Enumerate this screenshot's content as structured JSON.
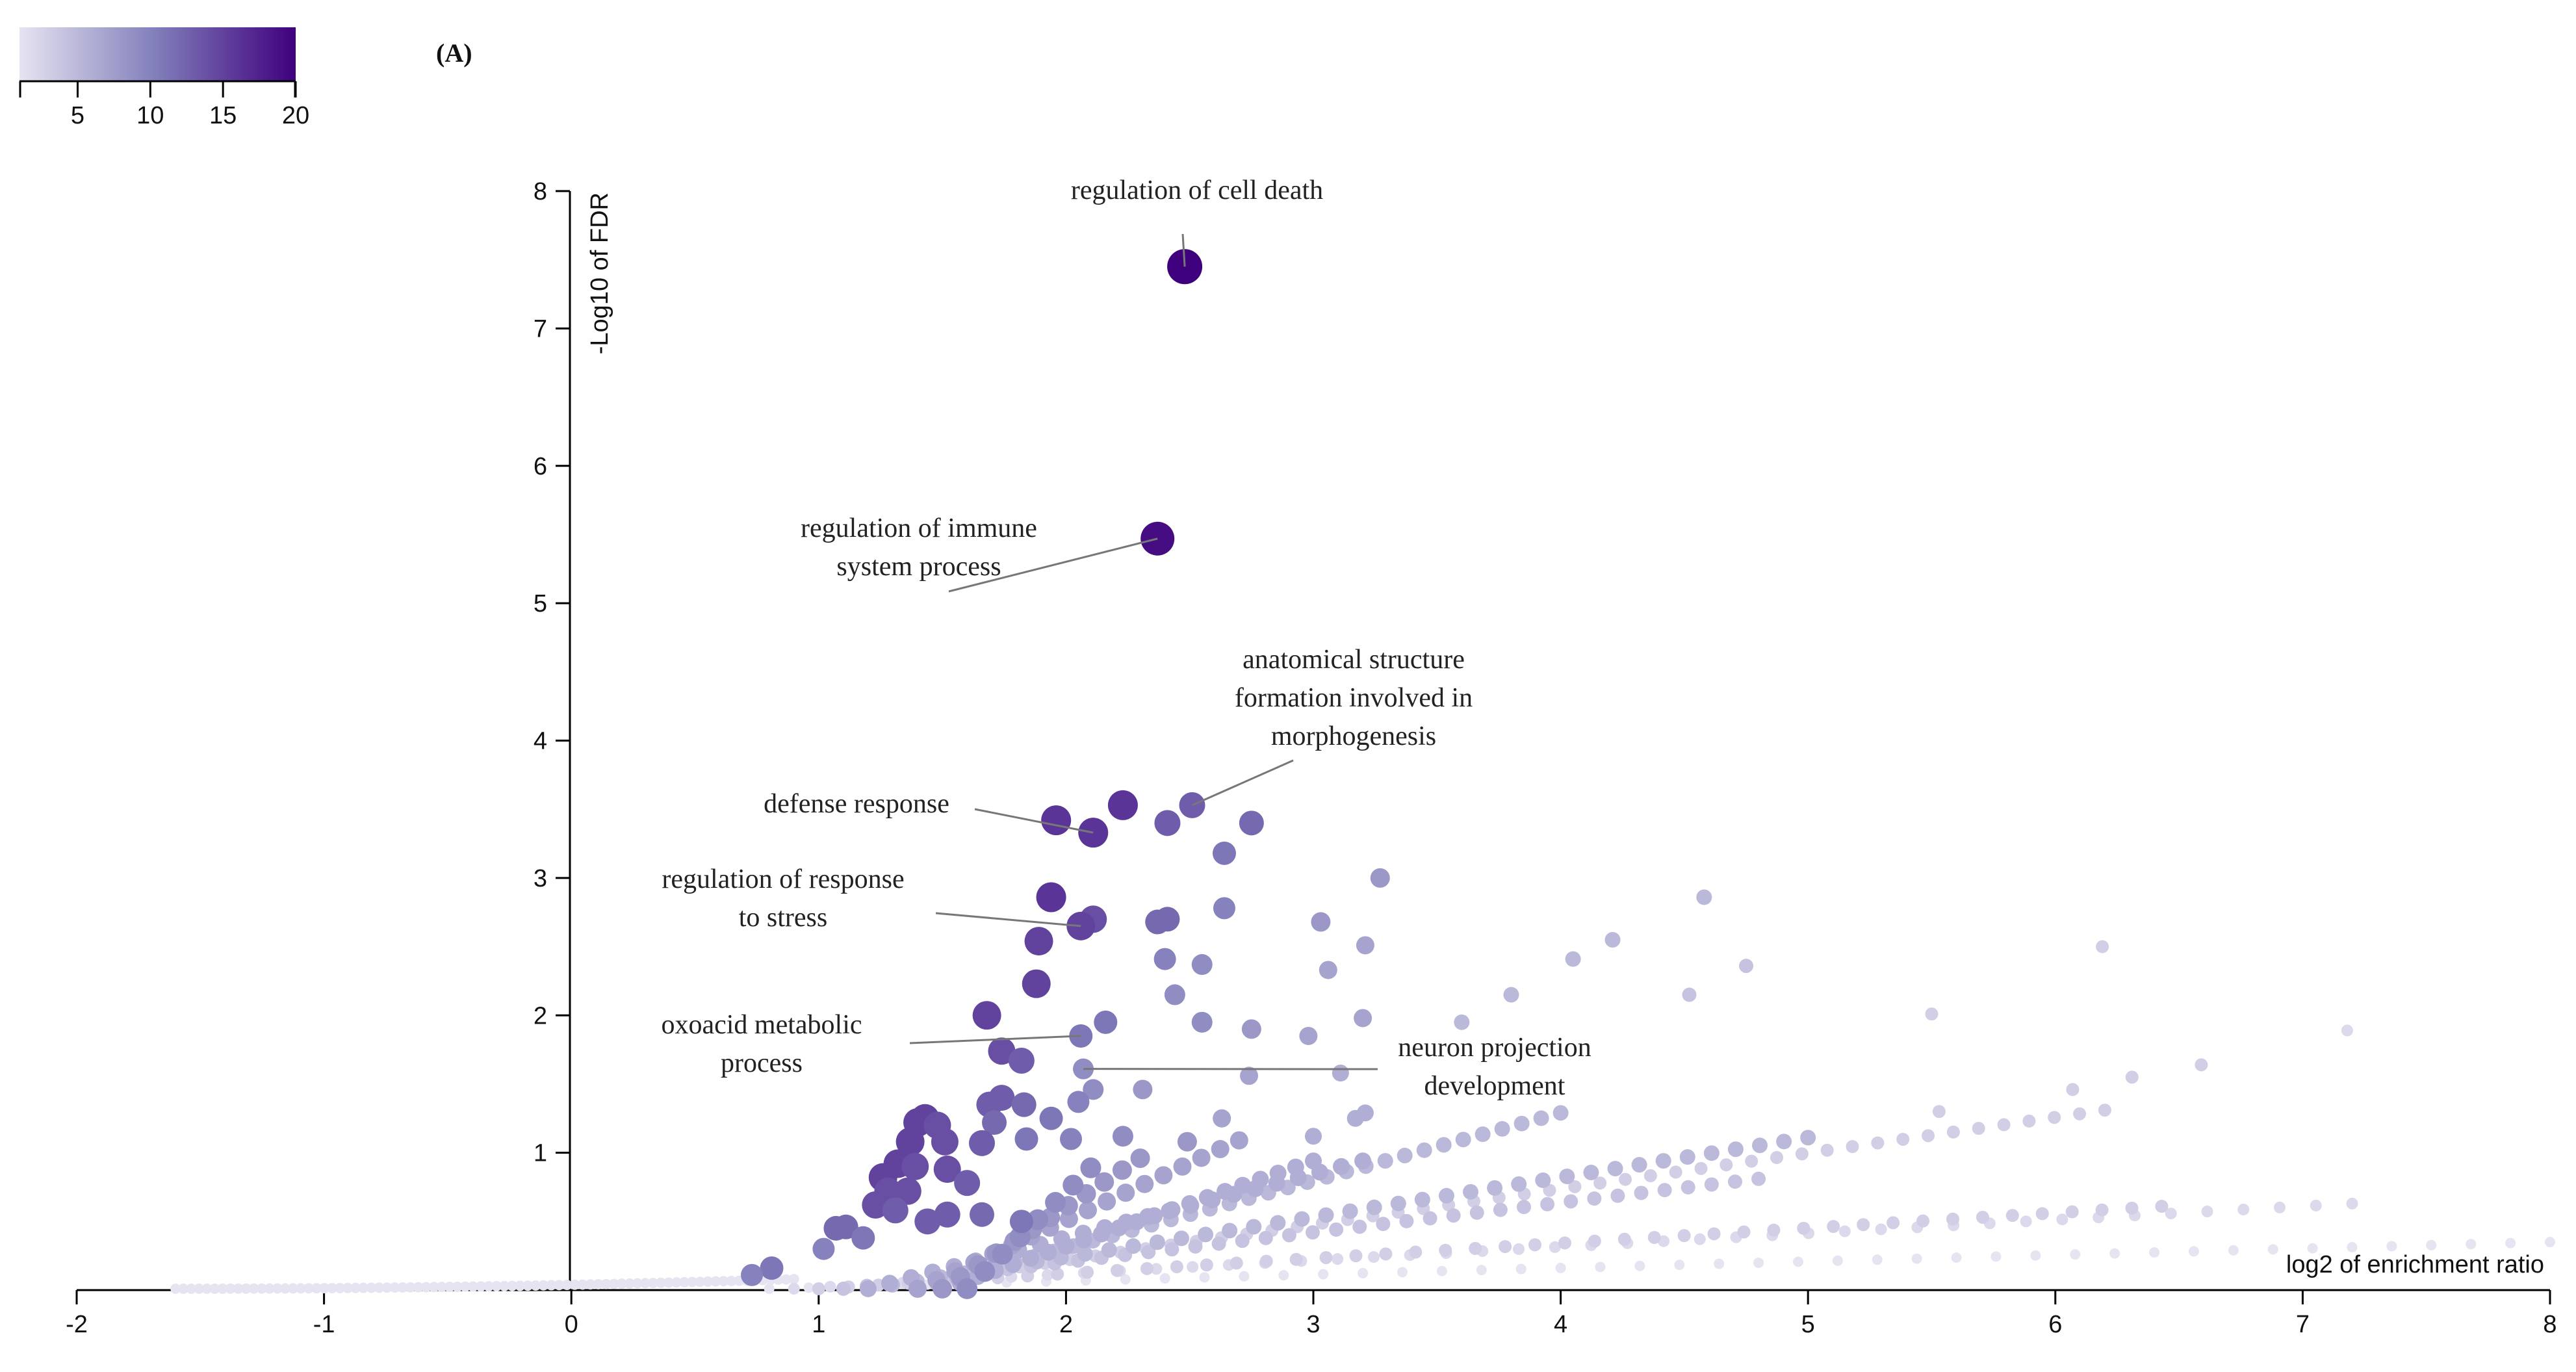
{
  "panel_label": "(A)",
  "colorbar": {
    "ticks": [
      "5",
      "10",
      "15",
      "20"
    ],
    "range": [
      1,
      20
    ],
    "color_low": "#e6e4f1",
    "color_high": "#3f007d"
  },
  "chart_data": {
    "type": "scatter",
    "xlabel": "log2 of enrichment ratio",
    "ylabel": "-Log10 of FDR",
    "xlim": [
      -2,
      8
    ],
    "ylim": [
      0,
      8
    ],
    "x_ticks": [
      "-2",
      "-1",
      "0",
      "1",
      "2",
      "3",
      "4",
      "5",
      "6",
      "7",
      "8"
    ],
    "y_ticks": [
      "1",
      "2",
      "3",
      "4",
      "5",
      "6",
      "7",
      "8"
    ],
    "grid": false,
    "labeled_points": [
      {
        "term": "regulation of cell death",
        "x": 2.48,
        "y": 7.45,
        "count": 20
      },
      {
        "term": "regulation of immune system process",
        "x": 2.37,
        "y": 5.47,
        "count": 19
      },
      {
        "term": "defense response",
        "x": 2.11,
        "y": 3.33,
        "count": 16
      },
      {
        "term": "anatomical structure formation involved in morphogenesis",
        "x": 2.51,
        "y": 3.53,
        "count": 13
      },
      {
        "term": "regulation of response to stress",
        "x": 2.06,
        "y": 2.65,
        "count": 15
      },
      {
        "term": "oxoacid metabolic process",
        "x": 2.06,
        "y": 1.85,
        "count": 11
      },
      {
        "term": "neuron projection development",
        "x": 2.07,
        "y": 1.61,
        "count": 9
      }
    ],
    "annotations": [
      {
        "lines": [
          "regulation of cell death"
        ]
      },
      {
        "lines": [
          "regulation of immune",
          "system process"
        ]
      },
      {
        "lines": [
          "anatomical structure",
          "formation involved in",
          "morphogenesis"
        ]
      },
      {
        "lines": [
          "defense response"
        ]
      },
      {
        "lines": [
          "regulation of response",
          "to stress"
        ]
      },
      {
        "lines": [
          "oxoacid metabolic",
          "process"
        ]
      },
      {
        "lines": [
          "neuron projection",
          "development"
        ]
      }
    ],
    "points": [
      {
        "x": 2.23,
        "y": 3.53,
        "count": 16
      },
      {
        "x": 1.96,
        "y": 3.42,
        "count": 16
      },
      {
        "x": 2.41,
        "y": 3.4,
        "count": 13
      },
      {
        "x": 2.75,
        "y": 3.4,
        "count": 12
      },
      {
        "x": 2.64,
        "y": 3.18,
        "count": 11
      },
      {
        "x": 3.27,
        "y": 3.0,
        "count": 8
      },
      {
        "x": 1.94,
        "y": 2.86,
        "count": 16
      },
      {
        "x": 2.11,
        "y": 2.7,
        "count": 14
      },
      {
        "x": 2.37,
        "y": 2.68,
        "count": 12
      },
      {
        "x": 2.41,
        "y": 2.7,
        "count": 12
      },
      {
        "x": 2.64,
        "y": 2.78,
        "count": 10
      },
      {
        "x": 3.03,
        "y": 2.68,
        "count": 8
      },
      {
        "x": 1.89,
        "y": 2.54,
        "count": 15
      },
      {
        "x": 3.21,
        "y": 2.51,
        "count": 7
      },
      {
        "x": 4.58,
        "y": 2.86,
        "count": 5
      },
      {
        "x": 4.21,
        "y": 2.55,
        "count": 5
      },
      {
        "x": 4.05,
        "y": 2.41,
        "count": 5
      },
      {
        "x": 4.75,
        "y": 2.36,
        "count": 4
      },
      {
        "x": 2.4,
        "y": 2.41,
        "count": 10
      },
      {
        "x": 2.55,
        "y": 2.37,
        "count": 9
      },
      {
        "x": 3.06,
        "y": 2.33,
        "count": 7
      },
      {
        "x": 6.19,
        "y": 2.5,
        "count": 3
      },
      {
        "x": 1.88,
        "y": 2.23,
        "count": 15
      },
      {
        "x": 2.44,
        "y": 2.15,
        "count": 9
      },
      {
        "x": 3.8,
        "y": 2.15,
        "count": 5
      },
      {
        "x": 4.52,
        "y": 2.15,
        "count": 4
      },
      {
        "x": 5.5,
        "y": 2.01,
        "count": 3
      },
      {
        "x": 1.68,
        "y": 2.0,
        "count": 15
      },
      {
        "x": 2.16,
        "y": 1.95,
        "count": 11
      },
      {
        "x": 2.55,
        "y": 1.95,
        "count": 9
      },
      {
        "x": 2.75,
        "y": 1.9,
        "count": 8
      },
      {
        "x": 3.2,
        "y": 1.98,
        "count": 7
      },
      {
        "x": 2.98,
        "y": 1.85,
        "count": 7
      },
      {
        "x": 3.6,
        "y": 1.95,
        "count": 5
      },
      {
        "x": 7.18,
        "y": 1.89,
        "count": 2
      },
      {
        "x": 1.74,
        "y": 1.74,
        "count": 14
      },
      {
        "x": 1.82,
        "y": 1.67,
        "count": 13
      },
      {
        "x": 3.11,
        "y": 1.58,
        "count": 6
      },
      {
        "x": 2.74,
        "y": 1.56,
        "count": 7
      },
      {
        "x": 6.59,
        "y": 1.64,
        "count": 3
      },
      {
        "x": 6.31,
        "y": 1.55,
        "count": 3
      },
      {
        "x": 6.07,
        "y": 1.46,
        "count": 3
      },
      {
        "x": 2.31,
        "y": 1.46,
        "count": 8
      },
      {
        "x": 2.11,
        "y": 1.46,
        "count": 9
      },
      {
        "x": 1.74,
        "y": 1.4,
        "count": 13
      },
      {
        "x": 1.69,
        "y": 1.35,
        "count": 13
      },
      {
        "x": 1.83,
        "y": 1.35,
        "count": 12
      },
      {
        "x": 2.05,
        "y": 1.37,
        "count": 10
      },
      {
        "x": 1.43,
        "y": 1.25,
        "count": 15
      },
      {
        "x": 1.4,
        "y": 1.22,
        "count": 15
      },
      {
        "x": 1.48,
        "y": 1.2,
        "count": 14
      },
      {
        "x": 1.71,
        "y": 1.22,
        "count": 12
      },
      {
        "x": 1.94,
        "y": 1.25,
        "count": 11
      },
      {
        "x": 2.63,
        "y": 1.25,
        "count": 7
      },
      {
        "x": 3.21,
        "y": 1.29,
        "count": 6
      },
      {
        "x": 3.17,
        "y": 1.25,
        "count": 6
      },
      {
        "x": 5.53,
        "y": 1.3,
        "count": 3
      },
      {
        "x": 1.37,
        "y": 1.08,
        "count": 15
      },
      {
        "x": 1.51,
        "y": 1.08,
        "count": 14
      },
      {
        "x": 1.66,
        "y": 1.07,
        "count": 13
      },
      {
        "x": 1.84,
        "y": 1.1,
        "count": 11
      },
      {
        "x": 2.02,
        "y": 1.1,
        "count": 10
      },
      {
        "x": 2.23,
        "y": 1.12,
        "count": 9
      },
      {
        "x": 2.49,
        "y": 1.08,
        "count": 8
      },
      {
        "x": 3.0,
        "y": 1.12,
        "count": 6
      },
      {
        "x": 1.32,
        "y": 0.92,
        "count": 15
      },
      {
        "x": 1.39,
        "y": 0.9,
        "count": 14
      },
      {
        "x": 1.52,
        "y": 0.88,
        "count": 14
      },
      {
        "x": 1.6,
        "y": 0.78,
        "count": 13
      },
      {
        "x": 1.26,
        "y": 0.82,
        "count": 15
      },
      {
        "x": 1.28,
        "y": 0.72,
        "count": 14
      },
      {
        "x": 1.36,
        "y": 0.72,
        "count": 14
      },
      {
        "x": 1.23,
        "y": 0.62,
        "count": 14
      },
      {
        "x": 1.31,
        "y": 0.58,
        "count": 13
      },
      {
        "x": 1.52,
        "y": 0.55,
        "count": 13
      },
      {
        "x": 1.44,
        "y": 0.5,
        "count": 13
      },
      {
        "x": 1.66,
        "y": 0.55,
        "count": 12
      },
      {
        "x": 1.82,
        "y": 0.5,
        "count": 11
      },
      {
        "x": 1.11,
        "y": 0.46,
        "count": 12
      },
      {
        "x": 1.07,
        "y": 0.45,
        "count": 12
      },
      {
        "x": 1.18,
        "y": 0.38,
        "count": 11
      },
      {
        "x": 1.02,
        "y": 0.3,
        "count": 10
      },
      {
        "x": 0.81,
        "y": 0.16,
        "count": 11
      },
      {
        "x": 0.73,
        "y": 0.11,
        "count": 10
      }
    ],
    "fan_series": [
      {
        "count": 1,
        "x_start": 0.8,
        "x_end": 8.0,
        "y_end": 0.34,
        "n": 46
      },
      {
        "count": 2,
        "x_start": 0.9,
        "x_end": 7.2,
        "y_end": 0.62,
        "n": 44
      },
      {
        "count": 3,
        "x_start": 1.0,
        "x_end": 6.43,
        "y_end": 0.6,
        "n": 46
      },
      {
        "count": 3,
        "x_start": 1.2,
        "x_end": 6.2,
        "y_end": 1.3,
        "n": 50
      },
      {
        "count": 4,
        "x_start": 1.1,
        "x_end": 4.8,
        "y_end": 0.8,
        "n": 40
      },
      {
        "count": 5,
        "x_start": 1.2,
        "x_end": 5.0,
        "y_end": 1.1,
        "n": 40
      },
      {
        "count": 5,
        "x_start": 1.4,
        "x_end": 4.0,
        "y_end": 1.28,
        "n": 34
      },
      {
        "count": 6,
        "x_start": 1.2,
        "x_end": 3.2,
        "y_end": 0.93,
        "n": 24
      },
      {
        "count": 6,
        "x_start": 1.5,
        "x_end": 3.0,
        "y_end": 0.93,
        "n": 22
      },
      {
        "count": 7,
        "x_start": 1.4,
        "x_end": 2.7,
        "y_end": 1.08,
        "n": 18
      },
      {
        "count": 8,
        "x_start": 1.5,
        "x_end": 2.3,
        "y_end": 0.95,
        "n": 12
      },
      {
        "count": 9,
        "x_start": 1.6,
        "x_end": 2.1,
        "y_end": 0.88,
        "n": 8
      }
    ],
    "negative_band": {
      "x_start": -1.6,
      "x_end": 0.9,
      "y_start": 0.01,
      "y_end": 0.08,
      "count": 1,
      "n": 80
    }
  }
}
